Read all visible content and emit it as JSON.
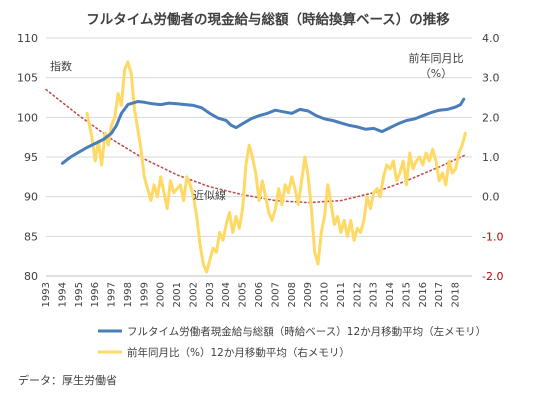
{
  "chart_data": {
    "type": "line",
    "title": "フルタイム労働者の現金給与総額（時給換算ベース）の推移",
    "left_axis": {
      "label": "指数",
      "ylim": [
        80,
        110
      ],
      "ticks": [
        "80",
        "85",
        "90",
        "95",
        "100",
        "105",
        "110"
      ]
    },
    "right_axis": {
      "label_line1": "前年同月比",
      "label_line2": "（%）",
      "ylim": [
        -2.0,
        4.0
      ],
      "ticks": [
        {
          "text": "-2.0",
          "value": -2.0,
          "negative": true
        },
        {
          "text": "-1.0",
          "value": -1.0,
          "negative": true
        },
        {
          "text": "0.0",
          "value": 0.0,
          "negative": false
        },
        {
          "text": "1.0",
          "value": 1.0,
          "negative": false
        },
        {
          "text": "2.0",
          "value": 2.0,
          "negative": false
        },
        {
          "text": "3.0",
          "value": 3.0,
          "negative": false
        },
        {
          "text": "4.0",
          "value": 4.0,
          "negative": false
        }
      ]
    },
    "x_axis": {
      "range": [
        1993,
        2019
      ],
      "tick_labels": [
        "1993",
        "1994",
        "1995",
        "1996",
        "1997",
        "1998",
        "1999",
        "2000",
        "2001",
        "2002",
        "2003",
        "2004",
        "2005",
        "2006",
        "2007",
        "2008",
        "2009",
        "2010",
        "2011",
        "2012",
        "2013",
        "2014",
        "2015",
        "2016",
        "2017",
        "2018"
      ]
    },
    "annotation": "近似線",
    "series": [
      {
        "name": "フルタイム労働者現金給与総額（時給ベース）12か月移動平均（左メモリ）",
        "axis": "left",
        "color": "#4a7ebb",
        "x": [
          1994.0,
          1994.5,
          1995.0,
          1995.5,
          1996.0,
          1996.5,
          1997.0,
          1997.3,
          1997.6,
          1998.0,
          1998.3,
          1998.6,
          1999.0,
          1999.5,
          2000.0,
          2000.5,
          2001.0,
          2001.5,
          2002.0,
          2002.5,
          2003.0,
          2003.5,
          2004.0,
          2004.3,
          2004.6,
          2005.0,
          2005.5,
          2006.0,
          2006.5,
          2007.0,
          2007.5,
          2008.0,
          2008.5,
          2009.0,
          2009.5,
          2010.0,
          2010.5,
          2011.0,
          2011.5,
          2012.0,
          2012.5,
          2013.0,
          2013.5,
          2014.0,
          2014.5,
          2015.0,
          2015.5,
          2016.0,
          2016.5,
          2017.0,
          2017.5,
          2018.0,
          2018.3,
          2018.5
        ],
        "values": [
          94.2,
          95.0,
          95.6,
          96.2,
          96.7,
          97.2,
          98.0,
          99.0,
          100.5,
          101.6,
          101.8,
          102.0,
          101.9,
          101.7,
          101.6,
          101.8,
          101.7,
          101.6,
          101.5,
          101.2,
          100.5,
          99.9,
          99.6,
          99.0,
          98.7,
          99.2,
          99.8,
          100.2,
          100.5,
          100.9,
          100.7,
          100.5,
          101.0,
          100.8,
          100.2,
          99.8,
          99.6,
          99.3,
          99.0,
          98.8,
          98.5,
          98.6,
          98.2,
          98.7,
          99.2,
          99.6,
          99.8,
          100.2,
          100.6,
          100.9,
          101.0,
          101.3,
          101.6,
          102.3
        ]
      },
      {
        "name": "前年同月比（%）12か月移動平均（右メモリ）",
        "axis": "right",
        "color": "#ffd966",
        "x": [
          1995.5,
          1995.8,
          1996.0,
          1996.2,
          1996.4,
          1996.6,
          1996.8,
          1997.0,
          1997.2,
          1997.4,
          1997.6,
          1997.8,
          1998.0,
          1998.2,
          1998.4,
          1998.6,
          1998.8,
          1999.0,
          1999.2,
          1999.4,
          1999.6,
          1999.8,
          2000.0,
          2000.2,
          2000.4,
          2000.6,
          2000.8,
          2001.0,
          2001.2,
          2001.4,
          2001.6,
          2001.8,
          2002.0,
          2002.2,
          2002.4,
          2002.6,
          2002.8,
          2003.0,
          2003.2,
          2003.4,
          2003.6,
          2003.8,
          2004.0,
          2004.2,
          2004.4,
          2004.6,
          2004.8,
          2005.0,
          2005.2,
          2005.4,
          2005.6,
          2005.8,
          2006.0,
          2006.2,
          2006.4,
          2006.6,
          2006.8,
          2007.0,
          2007.2,
          2007.4,
          2007.6,
          2007.8,
          2008.0,
          2008.2,
          2008.4,
          2008.6,
          2008.8,
          2009.0,
          2009.2,
          2009.4,
          2009.6,
          2009.8,
          2010.0,
          2010.2,
          2010.4,
          2010.6,
          2010.8,
          2011.0,
          2011.2,
          2011.4,
          2011.6,
          2011.8,
          2012.0,
          2012.2,
          2012.4,
          2012.6,
          2012.8,
          2013.0,
          2013.2,
          2013.4,
          2013.6,
          2013.8,
          2014.0,
          2014.2,
          2014.4,
          2014.6,
          2014.8,
          2015.0,
          2015.2,
          2015.4,
          2015.6,
          2015.8,
          2016.0,
          2016.2,
          2016.4,
          2016.6,
          2016.8,
          2017.0,
          2017.2,
          2017.4,
          2017.6,
          2017.8,
          2018.0,
          2018.2,
          2018.4,
          2018.6
        ],
        "values": [
          2.1,
          1.5,
          0.9,
          1.4,
          0.8,
          1.6,
          1.3,
          1.8,
          2.0,
          2.6,
          2.3,
          3.2,
          3.4,
          3.1,
          2.2,
          1.7,
          1.2,
          0.5,
          0.2,
          -0.1,
          0.3,
          0.0,
          0.5,
          0.1,
          -0.3,
          0.4,
          0.1,
          0.2,
          0.3,
          -0.1,
          0.5,
          0.3,
          0.0,
          -0.5,
          -1.2,
          -1.7,
          -1.9,
          -1.6,
          -1.3,
          -1.4,
          -0.9,
          -1.1,
          -0.7,
          -0.4,
          -0.9,
          -0.5,
          -0.8,
          -0.3,
          0.8,
          1.3,
          1.0,
          0.6,
          -0.1,
          0.4,
          0.0,
          -0.4,
          -0.6,
          -0.3,
          0.2,
          -0.2,
          0.3,
          0.1,
          0.5,
          0.2,
          -0.2,
          0.4,
          1.0,
          0.5,
          -0.3,
          -1.4,
          -1.7,
          -0.9,
          -0.5,
          0.3,
          -0.2,
          -0.7,
          -0.5,
          -0.9,
          -0.6,
          -1.0,
          -0.6,
          -1.1,
          -0.8,
          -0.9,
          -0.6,
          0.0,
          -0.3,
          0.1,
          0.2,
          0.0,
          0.5,
          0.8,
          0.7,
          0.9,
          0.4,
          0.6,
          0.9,
          0.3,
          1.1,
          0.7,
          0.9,
          1.0,
          0.8,
          1.1,
          0.9,
          1.2,
          0.9,
          0.4,
          0.6,
          0.3,
          0.9,
          0.6,
          0.7,
          1.1,
          1.3,
          1.6
        ]
      },
      {
        "name": "近似線",
        "axis": "right",
        "color": "#c0504d",
        "dashed": true,
        "x": [
          1993.0,
          1995.0,
          1997.0,
          1999.0,
          2001.0,
          2003.0,
          2005.0,
          2007.0,
          2009.0,
          2011.0,
          2013.0,
          2015.0,
          2017.0,
          2018.6
        ],
        "values": [
          2.7,
          2.05,
          1.45,
          0.95,
          0.55,
          0.25,
          0.05,
          -0.1,
          -0.15,
          -0.1,
          0.1,
          0.4,
          0.75,
          1.05
        ]
      }
    ]
  },
  "source": "データ：厚生労働省"
}
